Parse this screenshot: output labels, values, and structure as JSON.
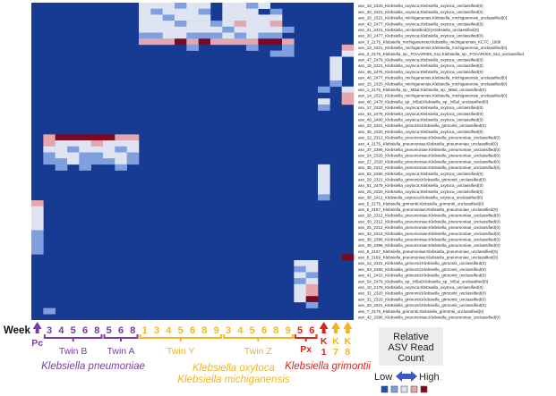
{
  "colors": {
    "background": "#173a92",
    "purple": "#7b3aa3",
    "yellow": "#f0b51f",
    "red": "#d9241c",
    "scale": [
      "#1f4db0",
      "#7f9fde",
      "#dfe4f2",
      "#e6a6ae",
      "#7a0a22"
    ]
  },
  "legend": {
    "title_lines": [
      "Relative",
      "ASV Read",
      "Count"
    ],
    "low": "Low",
    "high": "High"
  },
  "axis": {
    "week_word": "Week"
  },
  "species_labels": {
    "pneumoniae": "Klebsiella pneumoniae",
    "oxytoca": "Klebsiella oxytoca",
    "michiganensis": "Klebsiella michiganensis",
    "grimontii": "Klebsiella grimontii"
  },
  "chart_data": {
    "type": "heatmap",
    "value_scale": "relative 0-4 (0 = background / absent, 4 = highest read count)",
    "columns": [
      {
        "group": "Pc",
        "week": ""
      },
      {
        "group": "Twin B",
        "week": "3"
      },
      {
        "group": "Twin B",
        "week": "4"
      },
      {
        "group": "Twin B",
        "week": "5"
      },
      {
        "group": "Twin B",
        "week": "6"
      },
      {
        "group": "Twin B",
        "week": "8"
      },
      {
        "group": "Twin A",
        "week": "5"
      },
      {
        "group": "Twin A",
        "week": "6"
      },
      {
        "group": "Twin A",
        "week": "8"
      },
      {
        "group": "Twin Y",
        "week": "1"
      },
      {
        "group": "Twin Y",
        "week": "3"
      },
      {
        "group": "Twin Y",
        "week": "4"
      },
      {
        "group": "Twin Y",
        "week": "5"
      },
      {
        "group": "Twin Y",
        "week": "6"
      },
      {
        "group": "Twin Y",
        "week": "8"
      },
      {
        "group": "Twin Y",
        "week": "9"
      },
      {
        "group": "Twin Z",
        "week": "3"
      },
      {
        "group": "Twin Z",
        "week": "4"
      },
      {
        "group": "Twin Z",
        "week": "5"
      },
      {
        "group": "Twin Z",
        "week": "6"
      },
      {
        "group": "Twin Z",
        "week": "8"
      },
      {
        "group": "Twin Z",
        "week": "9"
      },
      {
        "group": "Px",
        "week": "5"
      },
      {
        "group": "Px",
        "week": "6"
      },
      {
        "group": "K",
        "week": "1"
      },
      {
        "group": "K",
        "week": "7"
      },
      {
        "group": "K",
        "week": "8"
      }
    ],
    "groups": [
      {
        "label": "Pc",
        "from": 0,
        "to": 0,
        "color": "purple"
      },
      {
        "label": "Twin B",
        "from": 1,
        "to": 5,
        "color": "purple"
      },
      {
        "label": "Twin A",
        "from": 6,
        "to": 8,
        "color": "purple"
      },
      {
        "label": "Twin Y",
        "from": 9,
        "to": 15,
        "color": "yellow"
      },
      {
        "label": "Twin Z",
        "from": 16,
        "to": 21,
        "color": "yellow"
      },
      {
        "label": "Px",
        "from": 22,
        "to": 23,
        "color": "red"
      },
      {
        "label": "K",
        "from": 24,
        "to": 24,
        "color": "red"
      },
      {
        "label": "K",
        "from": 25,
        "to": 25,
        "color": "yellow"
      },
      {
        "label": "K",
        "from": 26,
        "to": 26,
        "color": "yellow"
      }
    ],
    "rows": [
      "asv_18_2320_Klebsiella_oxytoca;Klebsiella_oxytoca_unclassified(0)",
      "asv_20_2321_Klebsiella_oxytoca;Klebsiella_oxytoca_unclassified(0)",
      "asv_16_2321_Klebsiella_michiganensis;Klebsiella_michiganensis_unclassified(0)",
      "asv_43_2477_Klebsiella_oxytoca;Klebsiella_oxytoca_unclassified(0)",
      "asv_21_2321_Klebsiella_unclassified(0);Klebsiella_unclassified(0)",
      "asv_30_2477_Klebsiella_oxytoca;Klebsiella_oxytoca_unclassified(0)",
      "asv_3_2175_Klebsiella_michiganensis;Klebsiella_michiganensis_KCTC_1686",
      "asv_13_2321_Klebsiella_michiganensis;Klebsiella_michiganensis_unclassified(0)",
      "asv_2_2175_Klebsiella_sp._FOAAR00S_511;Klebsiella_sp._FOAAR00S_511_unclassified",
      "asv_47_2479_Klebsiella_oxytoca;Klebsiella_oxytoca_unclassified(0)",
      "asv_19_2321_Klebsiella_oxytoca;Klebsiella_oxytoca_unclassified(0)",
      "asv_45_2476_Klebsiella_oxytoca;Klebsiella_oxytoca_unclassified(0)",
      "asv_48_2477_Klebsiella_michiganensis;Klebsiella_michiganensis_unclassified(0)",
      "asv_15_2320_Klebsiella_michiganensis;Klebsiella_michiganensis_unclassified(0)",
      "asv_1_2175_Klebsiella_sp._M5al;Klebsiella_sp._M5al_unclassified(0)",
      "asv_14_2321_Klebsiella_michiganensis;Klebsiella_michiganensis_unclassified(0)",
      "asv_46_2479_Klebsiella_sp._M5al;Klebsiella_sp._M5al_unclassified(0)",
      "asv_17_2320_Klebsiella_oxytoca;Klebsiella_oxytoca_unclassified(0)",
      "asv_44_2476_Klebsiella_oxytoca;Klebsiella_oxytoca_unclassified(0)",
      "asv_49_2480_Klebsiella_oxytoca;Klebsiella_oxytoca_unclassified(0)",
      "asv_23_2321_Klebsiella_grimontii;Klebsiella_grimontii_unclassified(0)",
      "asv_35_2320_Klebsiella_oxytoca;Klebsiella_oxytoca_unclassified(0)",
      "asv_22_2312_Klebsiella_pneumoniae;Klebsiella_pneumoniae_unclassified(0)",
      "asv_4_2175_Klebsiella_pneumoniae;Klebsiella_pneumoniae_unclassified(0)",
      "asv_37_2396_Klebsiella_pneumoniae;Klebsiella_pneumoniae_unclassified(0)",
      "asv_24_2320_Klebsiella_pneumoniae;Klebsiella_pneumoniae_unclassified(0)",
      "asv_27_2320_Klebsiella_pneumoniae;Klebsiella_pneumoniae_unclassified(0)",
      "asv_36_2312_Klebsiella_pneumoniae;Klebsiella_pneumoniae_unclassified(0)",
      "asv_52_2480_Klebsiella_oxytoca;Klebsiella_oxytoca_unclassified(0)",
      "asv_29_2321_Klebsiella_grimontii;Klebsiella_grimontii_unclassified(0)",
      "asv_51_2479_Klebsiella_oxytoca;Klebsiella_oxytoca_unclassified(0)",
      "asv_26_2320_Klebsiella_oxytoca;Klebsiella_oxytoca_unclassified(0)",
      "asv_38_2411_Klebsiella_oxytoca;Klebsiella_oxytoca_unclassified(0)",
      "asv_5_2175_Klebsiella_grimontii;Klebsiella_grimontii_unclassified(0)",
      "asv_6_2167_Klebsiella_pneumoniae;Klebsiella_pneumoniae_unclassified(0)",
      "asv_28_2312_Klebsiella_pneumoniae;Klebsiella_pneumoniae_unclassified(0)",
      "asv_30_2312_Klebsiella_pneumoniae;Klebsiella_pneumoniae_unclassified(0)",
      "asv_25_2312_Klebsiella_pneumoniae;Klebsiella_pneumoniae_unclassified(0)",
      "asv_34_2312_Klebsiella_pneumoniae;Klebsiella_pneumoniae_unclassified(0)",
      "asv_39_2396_Klebsiella_pneumoniae;Klebsiella_pneumoniae_unclassified(0)",
      "asv_40_2396_Klebsiella_pneumoniae;Klebsiella_pneumoniae_unclassified(0)",
      "asv_9_2167_Klebsiella_pneumoniae;Klebsiella_pneumoniae_unclassified(0)",
      "asv_8_2169_Klebsiella_pneumoniae;Klebsiella_pneumoniae_unclassified(0)",
      "asv_12_2321_Klebsiella_grimontii;Klebsiella_grimontii_unclassified(0)",
      "asv_53_2480_Klebsiella_grimontii;Klebsiella_grimontii_unclassified(0)",
      "asv_41_2410_Klebsiella_grimontii;Klebsiella_grimontii_unclassified(0)",
      "asv_54_2479_Klebsiella_sp._M5al;Klebsiella_sp._M5al_unclassified(0)",
      "asv_10_2175_Klebsiella_oxytoca;Klebsiella_oxytoca_unclassified(0)",
      "asv_31_2320_Klebsiella_grimontii;Klebsiella_grimontii_unclassified(0)",
      "asv_32_2320_Klebsiella_grimontii;Klebsiella_grimontii_unclassified(0)",
      "asv_33_2321_Klebsiella_grimontii;Klebsiella_grimontii_unclassified(0)",
      "asv_7_2175_Klebsiella_grimontii;Klebsiella_grimontii_unclassified(0)",
      "asv_42_2396_Klebsiella_pneumoniae;Klebsiella_pneumoniae_unclassified(0)"
    ],
    "cells": [
      {
        "row": 0,
        "col": 9,
        "v": 2
      },
      {
        "row": 0,
        "col": 10,
        "v": 2
      },
      {
        "row": 0,
        "col": 11,
        "v": 2
      },
      {
        "row": 0,
        "col": 12,
        "v": 1
      },
      {
        "row": 0,
        "col": 13,
        "v": 2
      },
      {
        "row": 0,
        "col": 14,
        "v": 2
      },
      {
        "row": 0,
        "col": 16,
        "v": 2
      },
      {
        "row": 0,
        "col": 17,
        "v": 2
      },
      {
        "row": 0,
        "col": 18,
        "v": 1
      },
      {
        "row": 0,
        "col": 19,
        "v": 2
      },
      {
        "row": 1,
        "col": 9,
        "v": 2
      },
      {
        "row": 1,
        "col": 10,
        "v": 1
      },
      {
        "row": 1,
        "col": 11,
        "v": 2
      },
      {
        "row": 1,
        "col": 12,
        "v": 2
      },
      {
        "row": 1,
        "col": 13,
        "v": 2
      },
      {
        "row": 1,
        "col": 14,
        "v": 1
      },
      {
        "row": 1,
        "col": 16,
        "v": 2
      },
      {
        "row": 1,
        "col": 17,
        "v": 2
      },
      {
        "row": 1,
        "col": 18,
        "v": 2
      },
      {
        "row": 1,
        "col": 20,
        "v": 1
      },
      {
        "row": 2,
        "col": 9,
        "v": 2
      },
      {
        "row": 2,
        "col": 10,
        "v": 2
      },
      {
        "row": 2,
        "col": 11,
        "v": 1
      },
      {
        "row": 2,
        "col": 12,
        "v": 2
      },
      {
        "row": 2,
        "col": 13,
        "v": 2
      },
      {
        "row": 2,
        "col": 14,
        "v": 2
      },
      {
        "row": 2,
        "col": 16,
        "v": 2
      },
      {
        "row": 2,
        "col": 17,
        "v": 2
      },
      {
        "row": 2,
        "col": 18,
        "v": 2
      },
      {
        "row": 2,
        "col": 19,
        "v": 2
      },
      {
        "row": 2,
        "col": 20,
        "v": 2
      },
      {
        "row": 3,
        "col": 9,
        "v": 2
      },
      {
        "row": 3,
        "col": 10,
        "v": 2
      },
      {
        "row": 3,
        "col": 11,
        "v": 2
      },
      {
        "row": 3,
        "col": 12,
        "v": 1
      },
      {
        "row": 3,
        "col": 13,
        "v": 2
      },
      {
        "row": 3,
        "col": 14,
        "v": 2
      },
      {
        "row": 3,
        "col": 15,
        "v": 1
      },
      {
        "row": 3,
        "col": 16,
        "v": 2
      },
      {
        "row": 3,
        "col": 17,
        "v": 3
      },
      {
        "row": 3,
        "col": 18,
        "v": 2
      },
      {
        "row": 3,
        "col": 19,
        "v": 2
      },
      {
        "row": 3,
        "col": 20,
        "v": 3
      },
      {
        "row": 4,
        "col": 9,
        "v": 2
      },
      {
        "row": 4,
        "col": 10,
        "v": 2
      },
      {
        "row": 4,
        "col": 11,
        "v": 2
      },
      {
        "row": 4,
        "col": 12,
        "v": 2
      },
      {
        "row": 4,
        "col": 13,
        "v": 2
      },
      {
        "row": 4,
        "col": 14,
        "v": 2
      },
      {
        "row": 4,
        "col": 15,
        "v": 2
      },
      {
        "row": 4,
        "col": 16,
        "v": 1
      },
      {
        "row": 4,
        "col": 17,
        "v": 2
      },
      {
        "row": 4,
        "col": 18,
        "v": 2
      },
      {
        "row": 4,
        "col": 19,
        "v": 2
      },
      {
        "row": 4,
        "col": 20,
        "v": 2
      },
      {
        "row": 4,
        "col": 21,
        "v": 1
      },
      {
        "row": 5,
        "col": 9,
        "v": 1
      },
      {
        "row": 5,
        "col": 10,
        "v": 1
      },
      {
        "row": 5,
        "col": 11,
        "v": 2
      },
      {
        "row": 5,
        "col": 12,
        "v": 2
      },
      {
        "row": 5,
        "col": 13,
        "v": 1
      },
      {
        "row": 5,
        "col": 14,
        "v": 1
      },
      {
        "row": 5,
        "col": 15,
        "v": 1
      },
      {
        "row": 5,
        "col": 16,
        "v": 2
      },
      {
        "row": 5,
        "col": 17,
        "v": 1
      },
      {
        "row": 5,
        "col": 18,
        "v": 2
      },
      {
        "row": 5,
        "col": 19,
        "v": 1
      },
      {
        "row": 5,
        "col": 20,
        "v": 1
      },
      {
        "row": 6,
        "col": 9,
        "v": 3
      },
      {
        "row": 6,
        "col": 10,
        "v": 3
      },
      {
        "row": 6,
        "col": 11,
        "v": 3
      },
      {
        "row": 6,
        "col": 12,
        "v": 4
      },
      {
        "row": 6,
        "col": 13,
        "v": 3
      },
      {
        "row": 6,
        "col": 14,
        "v": 4
      },
      {
        "row": 6,
        "col": 15,
        "v": 3
      },
      {
        "row": 6,
        "col": 16,
        "v": 3
      },
      {
        "row": 6,
        "col": 17,
        "v": 3
      },
      {
        "row": 6,
        "col": 18,
        "v": 3
      },
      {
        "row": 6,
        "col": 19,
        "v": 4
      },
      {
        "row": 6,
        "col": 20,
        "v": 4
      },
      {
        "row": 6,
        "col": 21,
        "v": 3
      },
      {
        "row": 7,
        "col": 13,
        "v": 1
      },
      {
        "row": 7,
        "col": 18,
        "v": 1
      },
      {
        "row": 7,
        "col": 21,
        "v": 1
      },
      {
        "row": 8,
        "col": 20,
        "v": 1
      },
      {
        "row": 8,
        "col": 21,
        "v": 1
      },
      {
        "row": 7,
        "col": 26,
        "v": 3
      },
      {
        "row": 8,
        "col": 26,
        "v": 2
      },
      {
        "row": 9,
        "col": 25,
        "v": 2
      },
      {
        "row": 10,
        "col": 25,
        "v": 2
      },
      {
        "row": 11,
        "col": 25,
        "v": 2
      },
      {
        "row": 12,
        "col": 25,
        "v": 2
      },
      {
        "row": 13,
        "col": 25,
        "v": 1
      },
      {
        "row": 14,
        "col": 26,
        "v": 2
      },
      {
        "row": 15,
        "col": 26,
        "v": 3
      },
      {
        "row": 16,
        "col": 26,
        "v": 3
      },
      {
        "row": 14,
        "col": 24,
        "v": 1
      },
      {
        "row": 16,
        "col": 24,
        "v": 2
      },
      {
        "row": 17,
        "col": 24,
        "v": 1
      },
      {
        "row": 22,
        "col": 1,
        "v": 3
      },
      {
        "row": 22,
        "col": 2,
        "v": 4
      },
      {
        "row": 22,
        "col": 3,
        "v": 4
      },
      {
        "row": 22,
        "col": 4,
        "v": 4
      },
      {
        "row": 22,
        "col": 5,
        "v": 4
      },
      {
        "row": 22,
        "col": 6,
        "v": 4
      },
      {
        "row": 22,
        "col": 7,
        "v": 3
      },
      {
        "row": 22,
        "col": 8,
        "v": 3
      },
      {
        "row": 23,
        "col": 1,
        "v": 3
      },
      {
        "row": 23,
        "col": 2,
        "v": 2
      },
      {
        "row": 23,
        "col": 3,
        "v": 2
      },
      {
        "row": 23,
        "col": 4,
        "v": 2
      },
      {
        "row": 23,
        "col": 5,
        "v": 3
      },
      {
        "row": 23,
        "col": 6,
        "v": 2
      },
      {
        "row": 23,
        "col": 7,
        "v": 2
      },
      {
        "row": 23,
        "col": 8,
        "v": 2
      },
      {
        "row": 24,
        "col": 1,
        "v": 2
      },
      {
        "row": 24,
        "col": 2,
        "v": 2
      },
      {
        "row": 24,
        "col": 3,
        "v": 1
      },
      {
        "row": 24,
        "col": 4,
        "v": 2
      },
      {
        "row": 24,
        "col": 5,
        "v": 2
      },
      {
        "row": 24,
        "col": 6,
        "v": 2
      },
      {
        "row": 24,
        "col": 7,
        "v": 1
      },
      {
        "row": 24,
        "col": 8,
        "v": 2
      },
      {
        "row": 25,
        "col": 1,
        "v": 1
      },
      {
        "row": 25,
        "col": 2,
        "v": 2
      },
      {
        "row": 25,
        "col": 3,
        "v": 2
      },
      {
        "row": 25,
        "col": 4,
        "v": 1
      },
      {
        "row": 25,
        "col": 5,
        "v": 1
      },
      {
        "row": 25,
        "col": 6,
        "v": 2
      },
      {
        "row": 25,
        "col": 7,
        "v": 2
      },
      {
        "row": 25,
        "col": 8,
        "v": 1
      },
      {
        "row": 26,
        "col": 1,
        "v": 1
      },
      {
        "row": 26,
        "col": 2,
        "v": 1
      },
      {
        "row": 26,
        "col": 3,
        "v": 2
      },
      {
        "row": 26,
        "col": 4,
        "v": 1
      },
      {
        "row": 26,
        "col": 5,
        "v": 1
      },
      {
        "row": 26,
        "col": 6,
        "v": 1
      },
      {
        "row": 26,
        "col": 7,
        "v": 2
      },
      {
        "row": 26,
        "col": 8,
        "v": 1
      },
      {
        "row": 27,
        "col": 2,
        "v": 1
      },
      {
        "row": 27,
        "col": 4,
        "v": 1
      },
      {
        "row": 27,
        "col": 7,
        "v": 1
      },
      {
        "row": 27,
        "col": 24,
        "v": 2
      },
      {
        "row": 28,
        "col": 24,
        "v": 2
      },
      {
        "row": 29,
        "col": 24,
        "v": 2
      },
      {
        "row": 30,
        "col": 24,
        "v": 2
      },
      {
        "row": 31,
        "col": 24,
        "v": 2
      },
      {
        "row": 32,
        "col": 24,
        "v": 1
      },
      {
        "row": 33,
        "col": 0,
        "v": 3
      },
      {
        "row": 34,
        "col": 0,
        "v": 2
      },
      {
        "row": 35,
        "col": 0,
        "v": 2
      },
      {
        "row": 36,
        "col": 0,
        "v": 2
      },
      {
        "row": 37,
        "col": 0,
        "v": 2
      },
      {
        "row": 38,
        "col": 0,
        "v": 1
      },
      {
        "row": 39,
        "col": 0,
        "v": 1
      },
      {
        "row": 40,
        "col": 0,
        "v": 1
      },
      {
        "row": 41,
        "col": 0,
        "v": 1
      },
      {
        "row": 42,
        "col": 26,
        "v": 4
      },
      {
        "row": 43,
        "col": 22,
        "v": 2
      },
      {
        "row": 43,
        "col": 23,
        "v": 2
      },
      {
        "row": 44,
        "col": 22,
        "v": 1
      },
      {
        "row": 44,
        "col": 23,
        "v": 2
      },
      {
        "row": 45,
        "col": 22,
        "v": 2
      },
      {
        "row": 45,
        "col": 23,
        "v": 1
      },
      {
        "row": 46,
        "col": 22,
        "v": 1
      },
      {
        "row": 46,
        "col": 23,
        "v": 2
      },
      {
        "row": 47,
        "col": 22,
        "v": 2
      },
      {
        "row": 47,
        "col": 23,
        "v": 3
      },
      {
        "row": 48,
        "col": 22,
        "v": 2
      },
      {
        "row": 48,
        "col": 23,
        "v": 3
      },
      {
        "row": 49,
        "col": 22,
        "v": 2
      },
      {
        "row": 49,
        "col": 23,
        "v": 4
      },
      {
        "row": 50,
        "col": 23,
        "v": 1
      },
      {
        "row": 51,
        "col": 1,
        "v": 1
      }
    ]
  }
}
